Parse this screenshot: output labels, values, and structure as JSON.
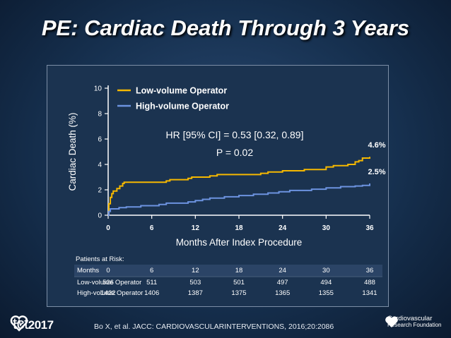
{
  "slide_title": "PE: Cardiac Death Through 3 Years",
  "citation": "Bo X, et al. JACC: CARDIOVASCULARINTERVENTIONS, 2016;20:2086",
  "logos": {
    "tct_main": "tct",
    "tct_year": "2017",
    "crf_line1": "Cardiovascular",
    "crf_line2": "Research Foundation"
  },
  "chart_data": {
    "type": "line",
    "xlabel": "Months After Index Procedure",
    "ylabel": "Cardiac Death (%)",
    "xlim": [
      0,
      36
    ],
    "ylim": [
      0,
      10
    ],
    "xticks": [
      0,
      6,
      12,
      18,
      24,
      30,
      36
    ],
    "yticks": [
      0,
      2,
      4,
      6,
      8,
      10
    ],
    "colors": {
      "low": "#f5b800",
      "high": "#6c93e0"
    },
    "annotation_hr": "HR [95% CI] = 0.53 [0.32, 0.89]",
    "annotation_p": "P = 0.02",
    "series": [
      {
        "name": "Low-volume Operator",
        "end_label": "4.6%",
        "points": [
          [
            0,
            0
          ],
          [
            0.1,
            0.9
          ],
          [
            0.3,
            1.4
          ],
          [
            0.5,
            1.7
          ],
          [
            0.7,
            1.9
          ],
          [
            1.2,
            2.1
          ],
          [
            1.6,
            2.3
          ],
          [
            2,
            2.5
          ],
          [
            2.2,
            2.6
          ],
          [
            8,
            2.7
          ],
          [
            8.5,
            2.8
          ],
          [
            11,
            2.9
          ],
          [
            11.5,
            3.0
          ],
          [
            14,
            3.1
          ],
          [
            15,
            3.2
          ],
          [
            21,
            3.3
          ],
          [
            22,
            3.4
          ],
          [
            24,
            3.5
          ],
          [
            27,
            3.6
          ],
          [
            30,
            3.8
          ],
          [
            31,
            3.9
          ],
          [
            33,
            4.0
          ],
          [
            34,
            4.2
          ],
          [
            34.5,
            4.3
          ],
          [
            35,
            4.5
          ],
          [
            36,
            4.6
          ]
        ]
      },
      {
        "name": "High-volume Operator",
        "end_label": "2.5%",
        "points": [
          [
            0,
            0
          ],
          [
            0.1,
            0.3
          ],
          [
            0.3,
            0.5
          ],
          [
            1.5,
            0.6
          ],
          [
            2.5,
            0.65
          ],
          [
            4.5,
            0.75
          ],
          [
            7,
            0.85
          ],
          [
            8,
            0.95
          ],
          [
            11,
            1.05
          ],
          [
            12,
            1.15
          ],
          [
            13,
            1.25
          ],
          [
            14,
            1.35
          ],
          [
            16,
            1.45
          ],
          [
            18,
            1.55
          ],
          [
            20,
            1.65
          ],
          [
            22,
            1.75
          ],
          [
            23.5,
            1.85
          ],
          [
            25,
            1.95
          ],
          [
            28,
            2.05
          ],
          [
            30,
            2.15
          ],
          [
            32,
            2.25
          ],
          [
            34,
            2.3
          ],
          [
            35,
            2.35
          ],
          [
            36,
            2.5
          ]
        ]
      }
    ],
    "risk_table": {
      "heading": "Patients at Risk:",
      "header_label": "Months",
      "months": [
        "0",
        "6",
        "12",
        "18",
        "24",
        "30",
        "36"
      ],
      "rows": [
        {
          "label": "Low-volume Operator",
          "values": [
            "526",
            "511",
            "503",
            "501",
            "497",
            "494",
            "488"
          ]
        },
        {
          "label": "High-volume Operator",
          "values": [
            "1422",
            "1406",
            "1387",
            "1375",
            "1365",
            "1355",
            "1341"
          ]
        }
      ]
    }
  }
}
